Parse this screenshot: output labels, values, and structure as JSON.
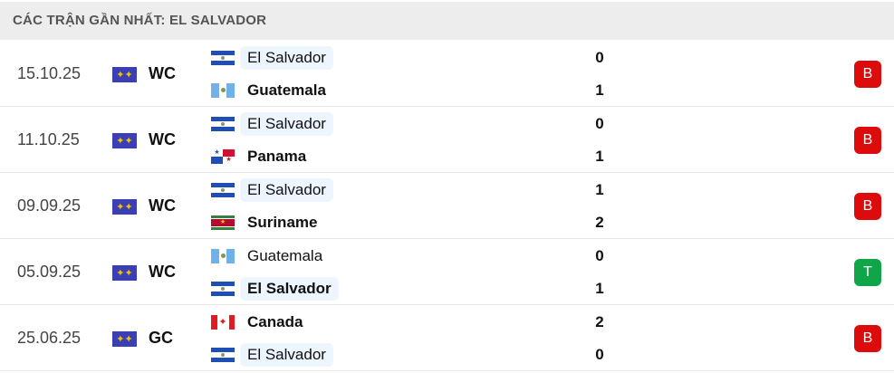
{
  "header": {
    "title": "CÁC TRẬN GẦN NHẤT: EL SALVADOR"
  },
  "colors": {
    "loss": "#dc0c0c",
    "win": "#11a54a",
    "highlight": "#edf5ff"
  },
  "matches": [
    {
      "date": "15.10.25",
      "competition": "WC",
      "competition_icon": "world-map-icon",
      "home": {
        "name": "El Salvador",
        "flag": "el-salvador",
        "score": "0",
        "winner": false,
        "highlight": true
      },
      "away": {
        "name": "Guatemala",
        "flag": "guatemala",
        "score": "1",
        "winner": true,
        "highlight": false
      },
      "result": "B"
    },
    {
      "date": "11.10.25",
      "competition": "WC",
      "competition_icon": "world-map-icon",
      "home": {
        "name": "El Salvador",
        "flag": "el-salvador",
        "score": "0",
        "winner": false,
        "highlight": true
      },
      "away": {
        "name": "Panama",
        "flag": "panama",
        "score": "1",
        "winner": true,
        "highlight": false
      },
      "result": "B"
    },
    {
      "date": "09.09.25",
      "competition": "WC",
      "competition_icon": "world-map-icon",
      "home": {
        "name": "El Salvador",
        "flag": "el-salvador",
        "score": "1",
        "winner": false,
        "highlight": true
      },
      "away": {
        "name": "Suriname",
        "flag": "suriname",
        "score": "2",
        "winner": true,
        "highlight": false
      },
      "result": "B"
    },
    {
      "date": "05.09.25",
      "competition": "WC",
      "competition_icon": "world-map-icon",
      "home": {
        "name": "Guatemala",
        "flag": "guatemala",
        "score": "0",
        "winner": false,
        "highlight": false
      },
      "away": {
        "name": "El Salvador",
        "flag": "el-salvador",
        "score": "1",
        "winner": true,
        "highlight": true
      },
      "result": "T"
    },
    {
      "date": "25.06.25",
      "competition": "GC",
      "competition_icon": "world-map-icon",
      "home": {
        "name": "Canada",
        "flag": "canada",
        "score": "2",
        "winner": true,
        "highlight": false
      },
      "away": {
        "name": "El Salvador",
        "flag": "el-salvador",
        "score": "0",
        "winner": false,
        "highlight": true
      },
      "result": "B"
    }
  ]
}
